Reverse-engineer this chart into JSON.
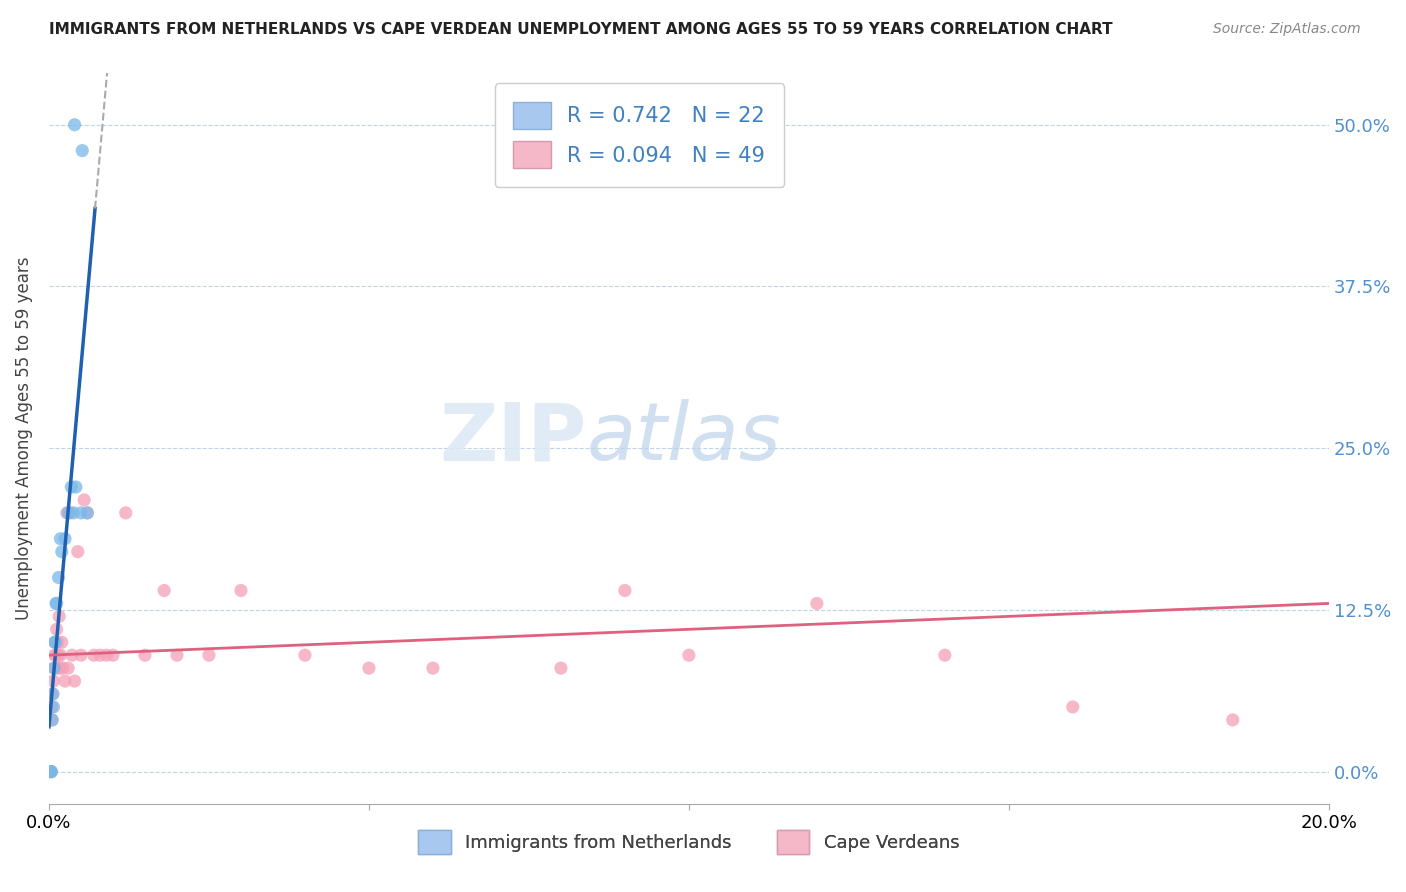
{
  "title": "IMMIGRANTS FROM NETHERLANDS VS CAPE VERDEAN UNEMPLOYMENT AMONG AGES 55 TO 59 YEARS CORRELATION CHART",
  "source": "Source: ZipAtlas.com",
  "ylabel": "Unemployment Among Ages 55 to 59 years",
  "xlim": [
    0.0,
    0.2
  ],
  "ylim": [
    -0.025,
    0.54
  ],
  "yticks": [
    0.0,
    0.125,
    0.25,
    0.375,
    0.5
  ],
  "ytick_labels": [
    "0.0%",
    "12.5%",
    "25.0%",
    "37.5%",
    "50.0%"
  ],
  "xticks": [
    0.0,
    0.05,
    0.1,
    0.15,
    0.2
  ],
  "xtick_labels": [
    "0.0%",
    "",
    "",
    "",
    "20.0%"
  ],
  "legend_entries": [
    {
      "label": "R = 0.742   N = 22",
      "color": "#a8c8f0"
    },
    {
      "label": "R = 0.094   N = 49",
      "color": "#f4b8c8"
    }
  ],
  "legend_bottom": [
    "Immigrants from Netherlands",
    "Cape Verdeans"
  ],
  "watermark": "ZIPatlas",
  "blue_color": "#7ab8e8",
  "pink_color": "#f4a0b8",
  "regression_blue_color": "#2060b0",
  "regression_pink_color": "#e06080",
  "regression_dashed_color": "#aaaaaa",
  "netherlands_x": [
    0.0002,
    0.0003,
    0.0004,
    0.0005,
    0.0006,
    0.0007,
    0.0008,
    0.0009,
    0.001,
    0.0011,
    0.0012,
    0.0015,
    0.0018,
    0.002,
    0.0025,
    0.003,
    0.0035,
    0.0038,
    0.0042,
    0.005,
    0.0052,
    0.006
  ],
  "netherlands_y": [
    0.0,
    0.0,
    0.0,
    0.04,
    0.06,
    0.05,
    0.08,
    0.1,
    0.1,
    0.13,
    0.13,
    0.15,
    0.18,
    0.17,
    0.18,
    0.2,
    0.22,
    0.2,
    0.22,
    0.2,
    0.48,
    0.2
  ],
  "nl_special_x": [
    0.004
  ],
  "nl_special_y": [
    0.5
  ],
  "capeverdean_x": [
    0.0002,
    0.0003,
    0.0004,
    0.0005,
    0.0006,
    0.0007,
    0.0008,
    0.0009,
    0.001,
    0.0011,
    0.0012,
    0.0013,
    0.0014,
    0.0015,
    0.0016,
    0.0017,
    0.0018,
    0.002,
    0.0022,
    0.0025,
    0.0028,
    0.003,
    0.0033,
    0.0036,
    0.004,
    0.0045,
    0.005,
    0.0055,
    0.006,
    0.007,
    0.008,
    0.009,
    0.01,
    0.012,
    0.015,
    0.018,
    0.02,
    0.025,
    0.03,
    0.04,
    0.05,
    0.06,
    0.08,
    0.09,
    0.1,
    0.12,
    0.14,
    0.16,
    0.185
  ],
  "capeverdean_y": [
    0.0,
    0.0,
    0.05,
    0.04,
    0.06,
    0.07,
    0.08,
    0.09,
    0.1,
    0.09,
    0.11,
    0.08,
    0.1,
    0.09,
    0.12,
    0.08,
    0.09,
    0.1,
    0.08,
    0.07,
    0.2,
    0.08,
    0.2,
    0.09,
    0.07,
    0.17,
    0.09,
    0.21,
    0.2,
    0.09,
    0.09,
    0.09,
    0.09,
    0.2,
    0.09,
    0.14,
    0.09,
    0.09,
    0.14,
    0.09,
    0.08,
    0.08,
    0.08,
    0.14,
    0.09,
    0.13,
    0.09,
    0.05,
    0.04
  ]
}
